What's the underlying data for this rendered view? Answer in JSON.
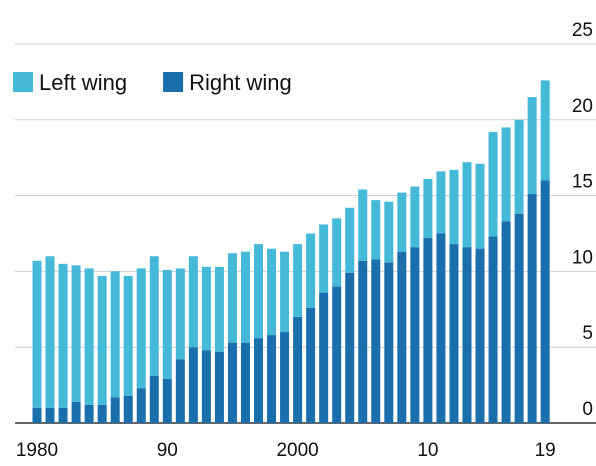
{
  "chart_data": {
    "type": "stacked_bar",
    "categories": [
      "1980",
      null,
      null,
      null,
      null,
      null,
      null,
      null,
      null,
      null,
      "90",
      null,
      null,
      null,
      null,
      null,
      null,
      null,
      null,
      null,
      "2000",
      null,
      null,
      null,
      null,
      null,
      null,
      null,
      null,
      null,
      "10",
      null,
      null,
      null,
      null,
      null,
      null,
      null,
      null,
      "19"
    ],
    "series": [
      {
        "name": "Left wing",
        "color": "#45b9d8",
        "values": [
          9.7,
          10.0,
          9.5,
          9.0,
          9.0,
          8.5,
          8.3,
          7.9,
          7.9,
          7.9,
          7.2,
          6.0,
          6.0,
          5.5,
          5.6,
          5.9,
          6.0,
          6.2,
          5.7,
          5.3,
          4.8,
          4.9,
          4.5,
          4.5,
          4.3,
          4.7,
          3.9,
          4.0,
          3.9,
          4.0,
          3.9,
          4.1,
          4.9,
          5.6,
          5.6,
          6.9,
          6.2,
          6.2,
          6.4,
          6.6
        ]
      },
      {
        "name": "Right wing",
        "color": "#1b6eac",
        "values": [
          1.0,
          1.0,
          1.0,
          1.4,
          1.2,
          1.2,
          1.7,
          1.8,
          2.3,
          3.1,
          2.9,
          4.2,
          5.0,
          4.8,
          4.7,
          5.3,
          5.3,
          5.6,
          5.8,
          6.0,
          7.0,
          7.6,
          8.6,
          9.0,
          9.9,
          10.7,
          10.8,
          10.6,
          11.3,
          11.6,
          12.2,
          12.5,
          11.8,
          11.6,
          11.5,
          12.3,
          13.3,
          13.8,
          15.1,
          16.0
        ]
      }
    ],
    "stack_order": [
      "Right wing",
      "Left wing"
    ],
    "ylim": [
      0,
      25
    ],
    "yticks": [
      0,
      5,
      10,
      15,
      20,
      25
    ],
    "grid": true,
    "legend": "top-left"
  }
}
